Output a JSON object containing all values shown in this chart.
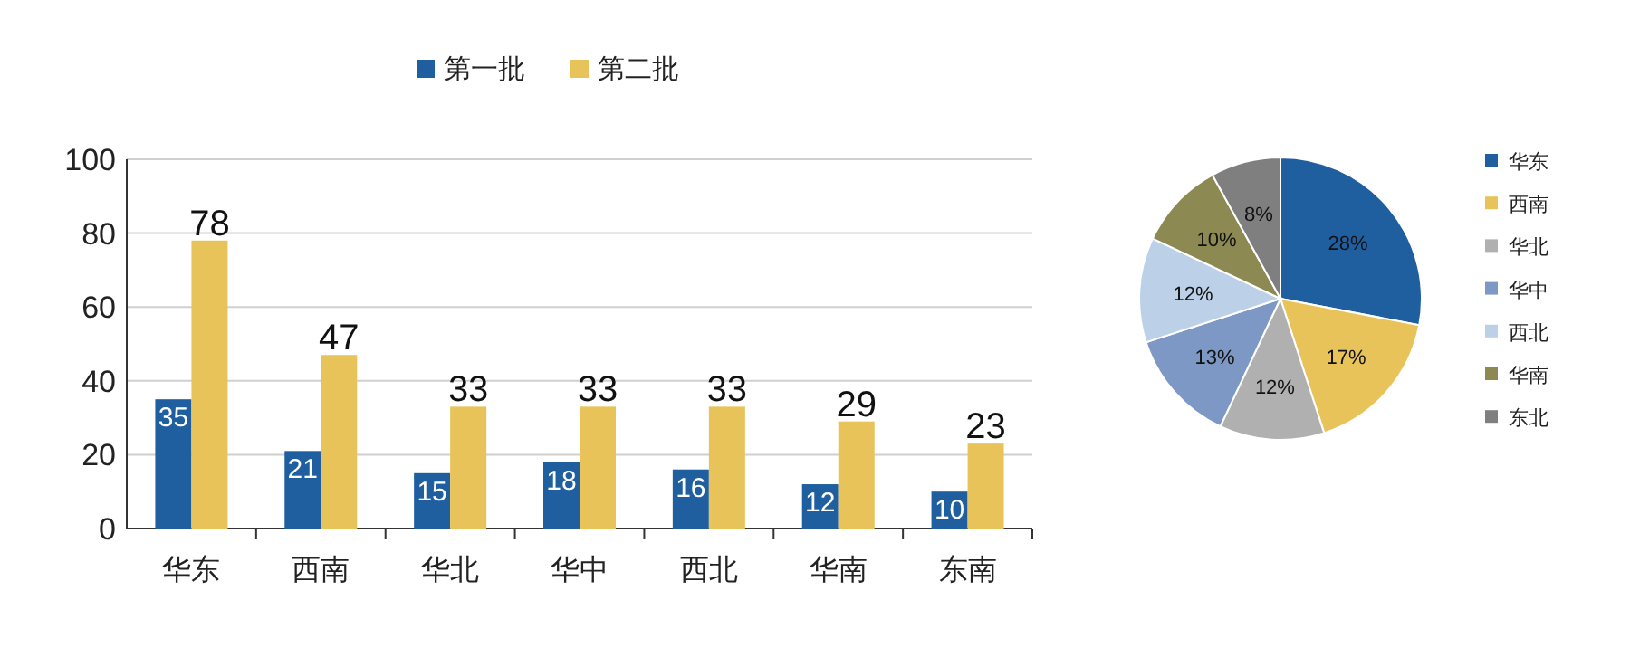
{
  "chart_data": [
    {
      "type": "bar",
      "categories": [
        "华东",
        "西南",
        "华北",
        "华中",
        "西北",
        "华南",
        "东南"
      ],
      "series": [
        {
          "name": "第一批",
          "color": "#1f5fa0",
          "values": [
            35,
            21,
            15,
            18,
            16,
            12,
            10
          ]
        },
        {
          "name": "第二批",
          "color": "#e8c35a",
          "values": [
            78,
            47,
            33,
            33,
            33,
            29,
            23
          ]
        }
      ],
      "ylim": [
        0,
        100
      ],
      "yticks": [
        0,
        20,
        40,
        60,
        80,
        100
      ],
      "grid": "y",
      "legend": "top",
      "data_labels": true
    },
    {
      "type": "pie",
      "categories": [
        "华东",
        "西南",
        "华北",
        "华中",
        "西北",
        "华南",
        "东北"
      ],
      "values": [
        28,
        17,
        12,
        13,
        12,
        10,
        8
      ],
      "colors": [
        "#1f5fa0",
        "#e8c35a",
        "#b0b0b0",
        "#7d98c4",
        "#bcd0e8",
        "#8c8a52",
        "#7f7f7f"
      ],
      "legend": "right",
      "value_labels": [
        "28%",
        "17%",
        "12%",
        "13%",
        "12%",
        "10%",
        "8%"
      ]
    }
  ]
}
